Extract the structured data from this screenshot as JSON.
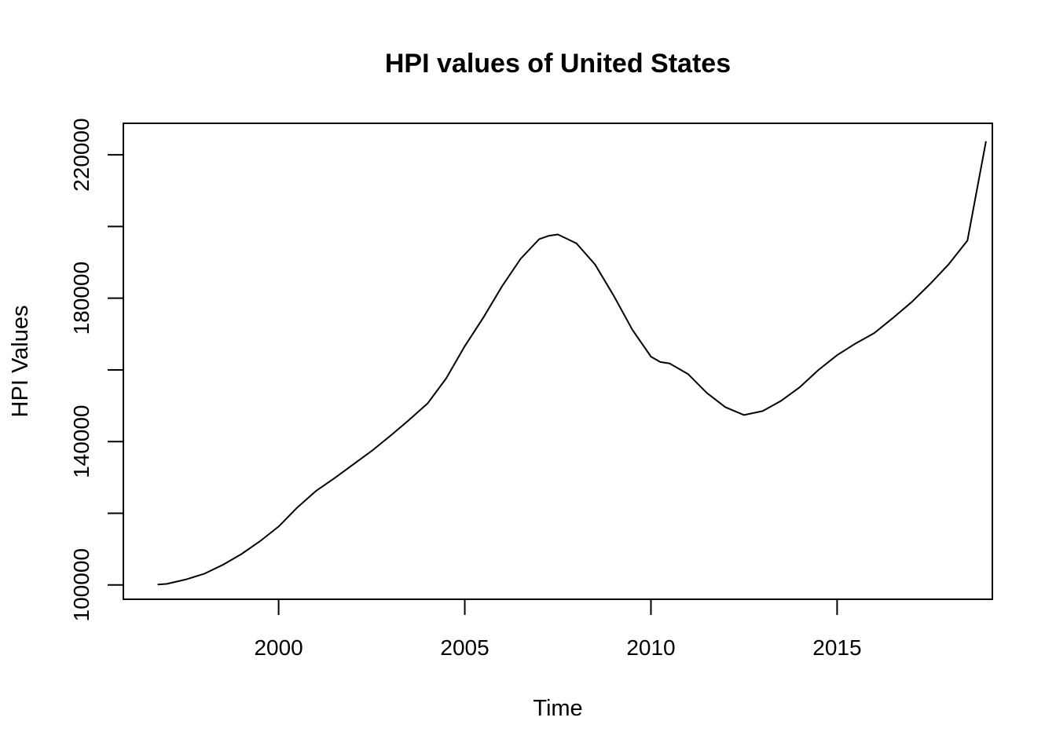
{
  "chart_data": {
    "type": "line",
    "title": "HPI values of United States",
    "xlabel": "Time",
    "ylabel": "HPI Values",
    "xlim": [
      1995.83,
      2019.17
    ],
    "ylim": [
      96000,
      228800
    ],
    "x_ticks": [
      2000,
      2005,
      2010,
      2015
    ],
    "y_ticks": [
      100000,
      120000,
      140000,
      160000,
      180000,
      200000,
      220000
    ],
    "y_tick_labels": [
      "100000",
      "",
      "140000",
      "",
      "180000",
      "",
      "220000"
    ],
    "grid": false,
    "legend": "none",
    "series": [
      {
        "color": "#000000",
        "x": [
          1996.75,
          1997.0,
          1997.5,
          1998.0,
          1998.5,
          1999.0,
          1999.5,
          2000.0,
          2000.5,
          2001.0,
          2001.5,
          2002.0,
          2002.5,
          2003.0,
          2003.5,
          2004.0,
          2004.5,
          2005.0,
          2005.5,
          2006.0,
          2006.5,
          2007.0,
          2007.25,
          2007.5,
          2008.0,
          2008.5,
          2009.0,
          2009.5,
          2010.0,
          2010.25,
          2010.5,
          2011.0,
          2011.5,
          2012.0,
          2012.5,
          2013.0,
          2013.5,
          2014.0,
          2014.5,
          2015.0,
          2015.5,
          2016.0,
          2016.5,
          2017.0,
          2017.5,
          2018.0,
          2018.5,
          2019.0
        ],
        "values": [
          100100,
          100300,
          101500,
          103100,
          105600,
          108600,
          112200,
          116300,
          121600,
          126200,
          129800,
          133600,
          137400,
          141600,
          146000,
          150600,
          157600,
          166600,
          174600,
          183300,
          191000,
          196500,
          197400,
          197800,
          195300,
          189400,
          180700,
          171200,
          163700,
          162200,
          161800,
          158800,
          153600,
          149600,
          147400,
          148500,
          151400,
          155200,
          160000,
          164100,
          167400,
          170300,
          174500,
          178900,
          184000,
          189500,
          196100,
          223800
        ]
      }
    ]
  }
}
